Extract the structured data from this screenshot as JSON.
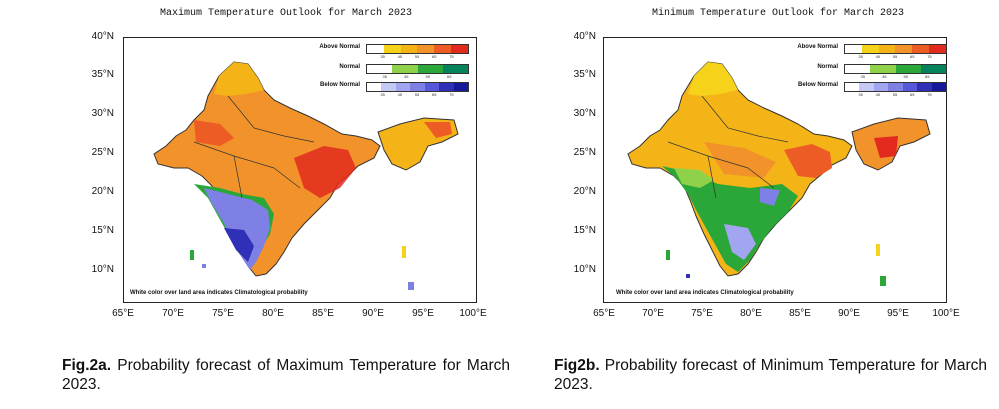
{
  "colors": {
    "above": [
      "#ffffff",
      "#f6d21b",
      "#f4b417",
      "#f2922a",
      "#ec5c24",
      "#e22a1e"
    ],
    "normal": [
      "#ffffff",
      "#8fd24a",
      "#2ba638",
      "#06835b"
    ],
    "below": [
      "#ffffff",
      "#c6c8f6",
      "#a2a5ef",
      "#7e80e6",
      "#5658da",
      "#2f2fb8",
      "#141a99"
    ],
    "accent_orange": "#f2a42a"
  },
  "panels": [
    {
      "id": "fig2a",
      "title": "Maximum Temperature Outlook for March 2023",
      "legend": [
        {
          "label": "Above Normal",
          "ticks": [
            "35",
            "45",
            "55",
            "65",
            "75"
          ]
        },
        {
          "label": "Normal",
          "ticks": [
            "35",
            "45",
            "55",
            "65"
          ]
        },
        {
          "label": "Below Normal",
          "ticks": [
            "35",
            "45",
            "55",
            "65",
            "75"
          ]
        }
      ],
      "note": "White color over land area indicates Climatological probability",
      "lat_labels": [
        "40°N",
        "35°N",
        "30°N",
        "25°N",
        "20°N",
        "15°N",
        "10°N"
      ],
      "lon_labels": [
        "65°E",
        "70°E",
        "75°E",
        "80°E",
        "85°E",
        "90°E",
        "95°E",
        "100°E"
      ],
      "caption_bold": "Fig.2a.",
      "caption_text": " Probability forecast of Maximum Temperature for March 2023."
    },
    {
      "id": "fig2b",
      "title": "Minimum Temperature Outlook for March 2023",
      "legend": [
        {
          "label": "Above Normal",
          "ticks": [
            "35",
            "45",
            "55",
            "65",
            "75"
          ]
        },
        {
          "label": "Normal",
          "ticks": [
            "35",
            "45",
            "55",
            "65"
          ]
        },
        {
          "label": "Below Normal",
          "ticks": [
            "35",
            "45",
            "55",
            "65",
            "75"
          ]
        }
      ],
      "note": "White color over land area indicates Climatological probability",
      "lat_labels": [
        "40°N",
        "35°N",
        "30°N",
        "25°N",
        "20°N",
        "15°N",
        "10°N"
      ],
      "lon_labels": [
        "65°E",
        "70°E",
        "75°E",
        "80°E",
        "85°E",
        "90°E",
        "95°E",
        "100°E"
      ],
      "caption_bold": "Fig2b.",
      "caption_text": " Probability forecast of Minimum Temperature for March 2023."
    }
  ]
}
